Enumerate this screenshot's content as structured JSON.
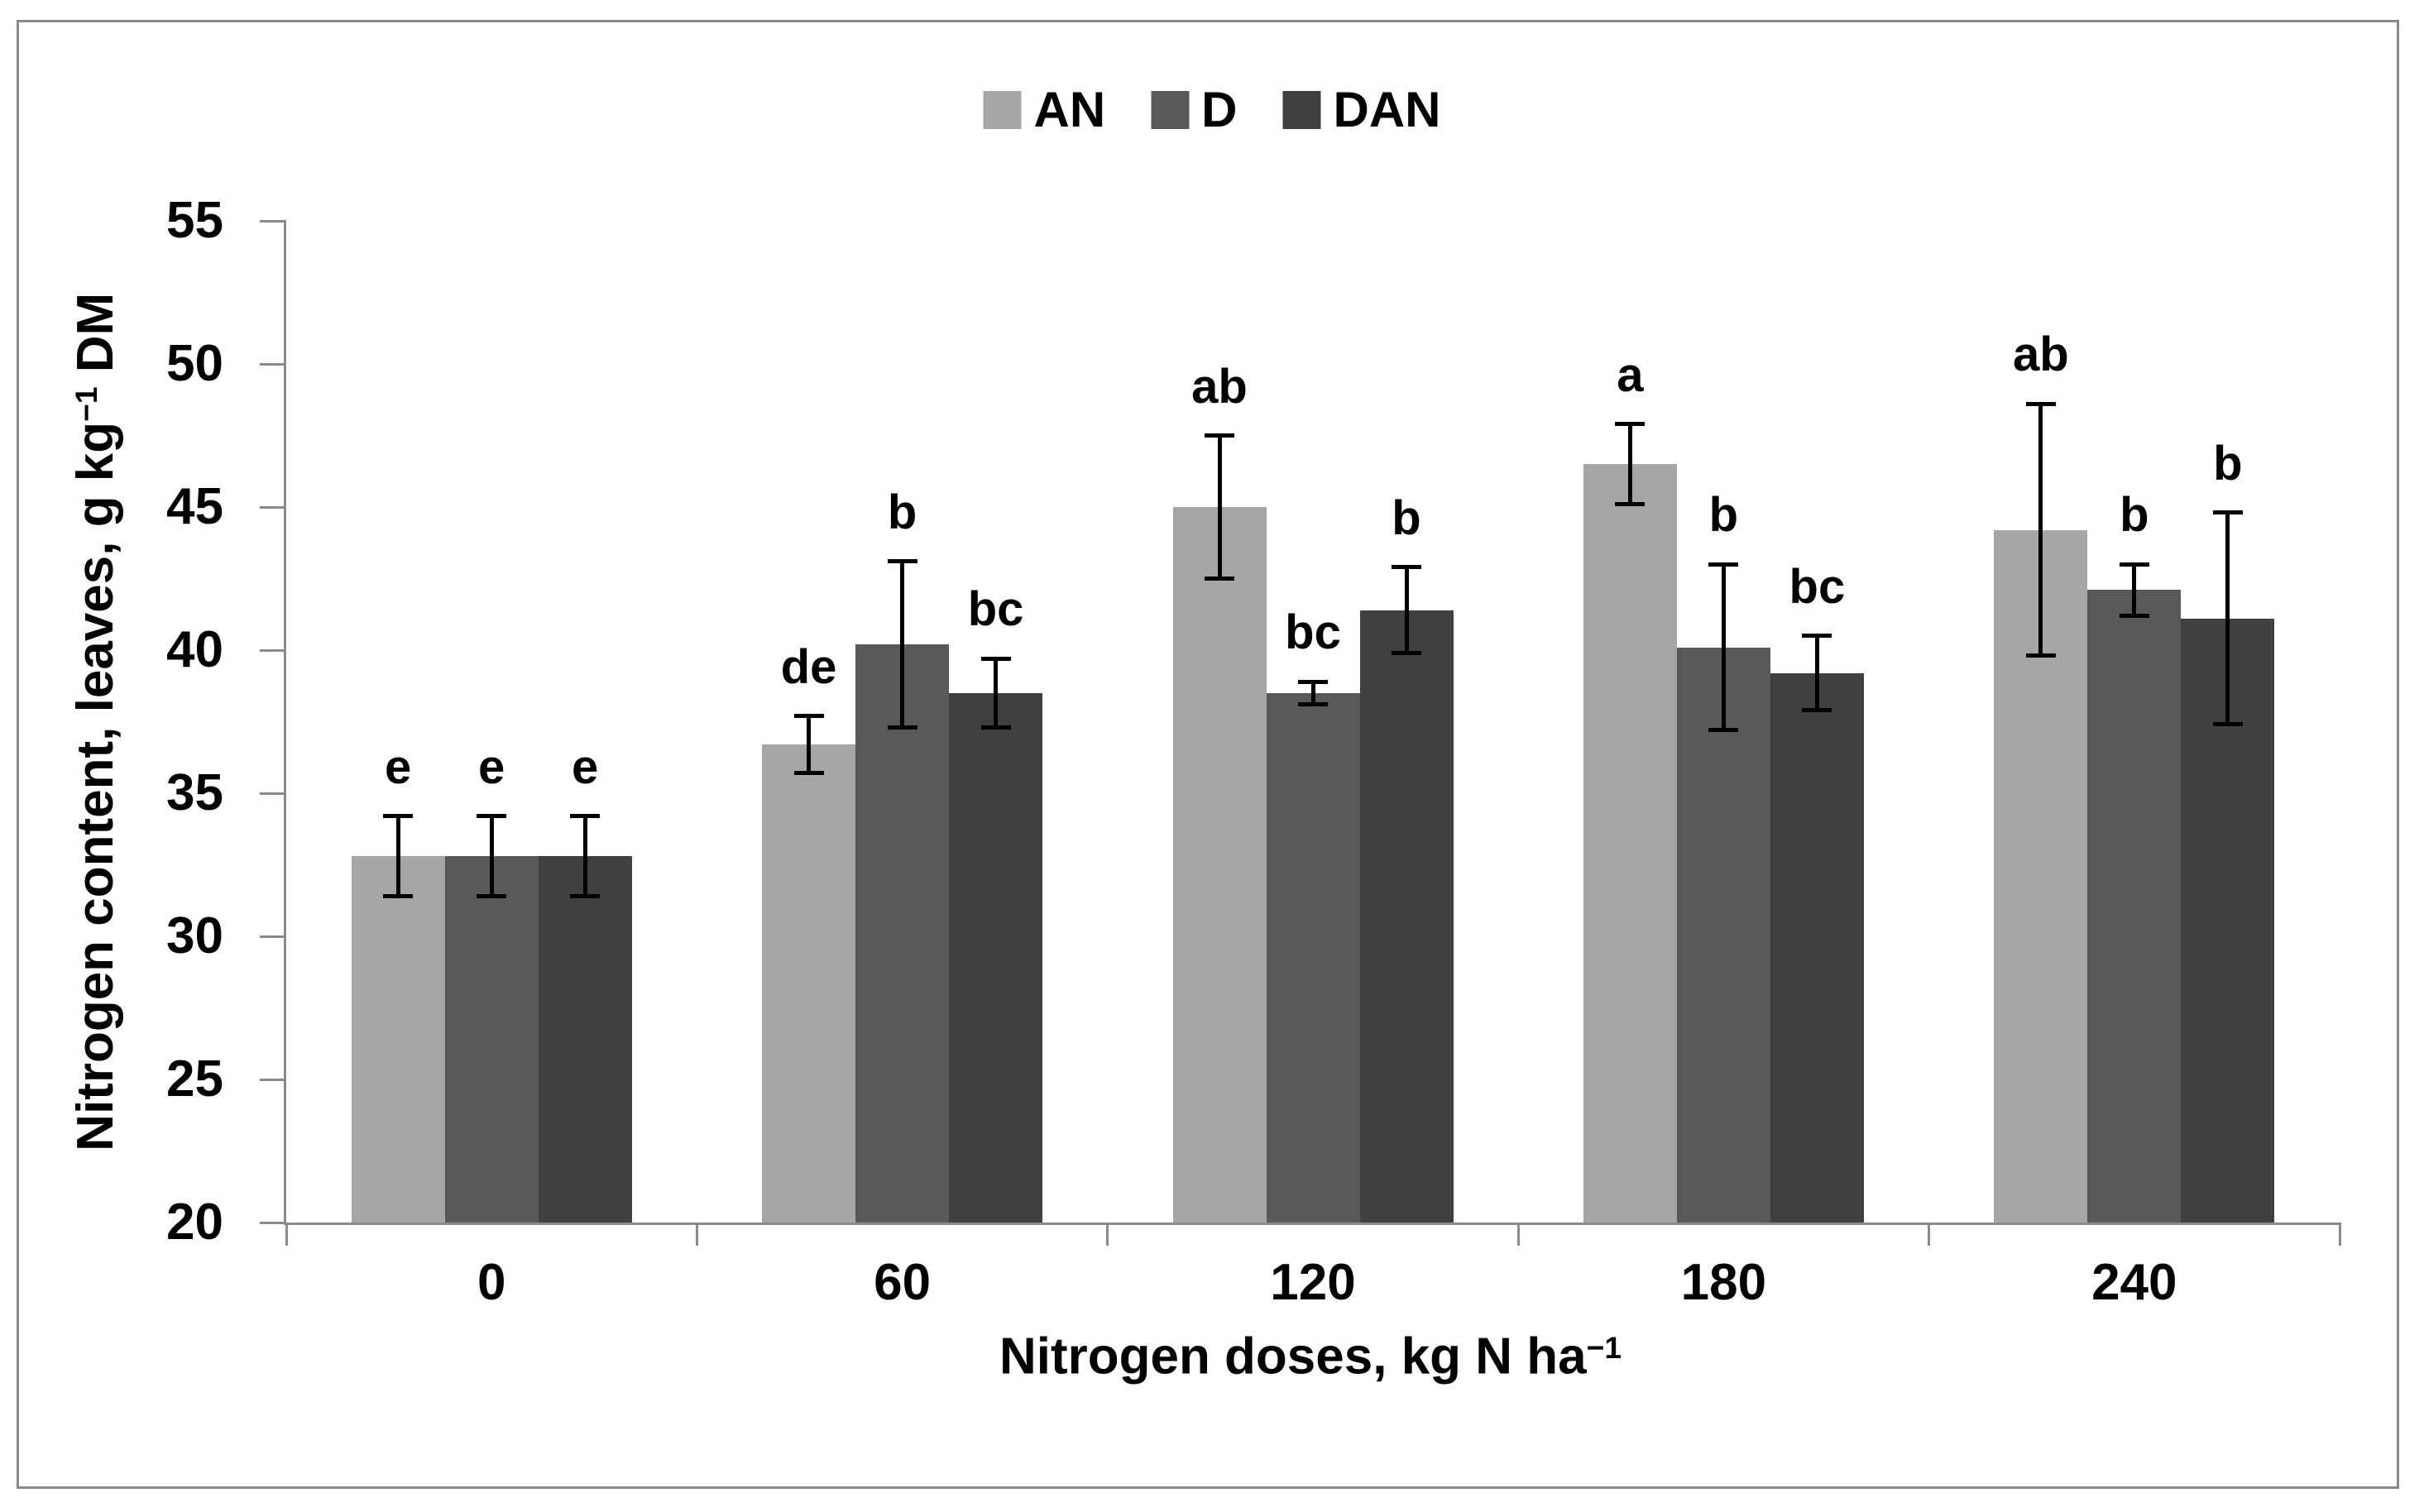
{
  "figure": {
    "background": "#ffffff",
    "border_color": "#8a8a8a",
    "axis_color": "#8a8a8a",
    "text_color": "#000000"
  },
  "legend": {
    "position": "top-center",
    "items": [
      {
        "label": "AN",
        "color": "#a6a6a6"
      },
      {
        "label": "D",
        "color": "#595959"
      },
      {
        "label": "DAN",
        "color": "#404040"
      }
    ]
  },
  "axes": {
    "y_title": {
      "base": "Nitrogen content, leaves, g kg",
      "sup": "−1",
      "suffix": " DM"
    },
    "x_title": {
      "base": "Nitrogen doses, kg N ha",
      "sup": "−1"
    },
    "y_tick_labels": [
      "55",
      "50",
      "45",
      "40",
      "35",
      "30",
      "25",
      "20"
    ],
    "x_tick_labels": [
      "0",
      "60",
      "120",
      "180",
      "240"
    ]
  },
  "chart_data": {
    "type": "bar",
    "title": "",
    "categories": [
      0,
      60,
      120,
      180,
      240
    ],
    "xlabel": "Nitrogen doses, kg N ha−1",
    "ylabel": "Nitrogen content, leaves, g kg−1 DM",
    "ylim": [
      20,
      55
    ],
    "ytick_step": 5,
    "grid": false,
    "legend_position": "top",
    "error_bars": true,
    "significance_letters": true,
    "series": [
      {
        "name": "AN",
        "color": "#a6a6a6",
        "values": [
          32.8,
          36.7,
          45.0,
          46.5,
          44.2
        ],
        "errors": [
          1.4,
          1.0,
          2.5,
          1.4,
          4.4
        ],
        "letters": [
          "e",
          "de",
          "ab",
          "a",
          "ab"
        ]
      },
      {
        "name": "D",
        "color": "#595959",
        "values": [
          32.8,
          40.2,
          38.5,
          40.1,
          42.1
        ],
        "errors": [
          1.4,
          2.9,
          0.4,
          2.9,
          0.9
        ],
        "letters": [
          "e",
          "b",
          "bc",
          "b",
          "b"
        ]
      },
      {
        "name": "DAN",
        "color": "#404040",
        "values": [
          32.8,
          38.5,
          41.4,
          39.2,
          41.1
        ],
        "errors": [
          1.4,
          1.2,
          1.5,
          1.3,
          3.7
        ],
        "letters": [
          "e",
          "bc",
          "b",
          "bc",
          "b"
        ]
      }
    ]
  }
}
